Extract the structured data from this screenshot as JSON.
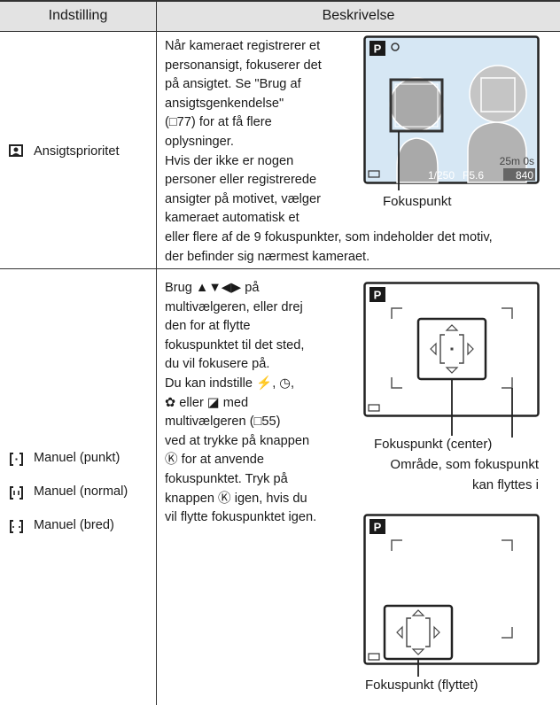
{
  "table": {
    "headers": [
      "Indstilling",
      "Beskrivelse"
    ],
    "rows": [
      {
        "setting": [
          "Ansigtsprioritet"
        ],
        "description": [
          "Når kameraet registrerer et",
          "personansigt, fokuserer det",
          "på ansigtet. Se \"Brug af",
          "ansigtsgenkendelse\"",
          "(□77) for at få flere",
          "oplysninger.",
          "Hvis der ikke er nogen",
          "personer eller registrerede",
          "ansigter på motivet, vælger",
          "kameraet automatisk et",
          "eller flere af de 9 fokuspunkter, som indeholder det motiv,",
          "der befinder sig nærmest kameraet."
        ],
        "figures": [
          {
            "screen": {
              "mode": "P",
              "shutter": "1/250",
              "aperture": "F5.6",
              "remaining": "25m 0s",
              "shots": "840"
            },
            "captions": [
              "Fokuspunkt"
            ]
          }
        ]
      },
      {
        "setting": [
          "Manuel (punkt)",
          "Manuel (normal)",
          "Manuel (bred)"
        ],
        "description": [
          "Brug ▲▼◀▶ på",
          "multivælgeren, eller drej",
          "den for at flytte",
          "fokuspunktet til det sted,",
          "du vil fokusere på.",
          "Du kan indstille ⚡, ◷,",
          "✿ eller ◪ med",
          "multivælgeren (□55)",
          "ved at trykke på knappen",
          "Ⓚ for at anvende",
          "fokuspunktet. Tryk på",
          "knappen Ⓚ igen, hvis du",
          "vil flytte fokuspunktet igen."
        ],
        "figures": [
          {
            "screen": {
              "mode": "P"
            },
            "captions": [
              "Fokuspunkt (center)",
              "Område, som fokuspunkt",
              "kan flyttes i"
            ]
          },
          {
            "screen": {
              "mode": "P"
            },
            "captions": [
              "Fokuspunkt (flyttet)"
            ]
          }
        ]
      }
    ]
  }
}
